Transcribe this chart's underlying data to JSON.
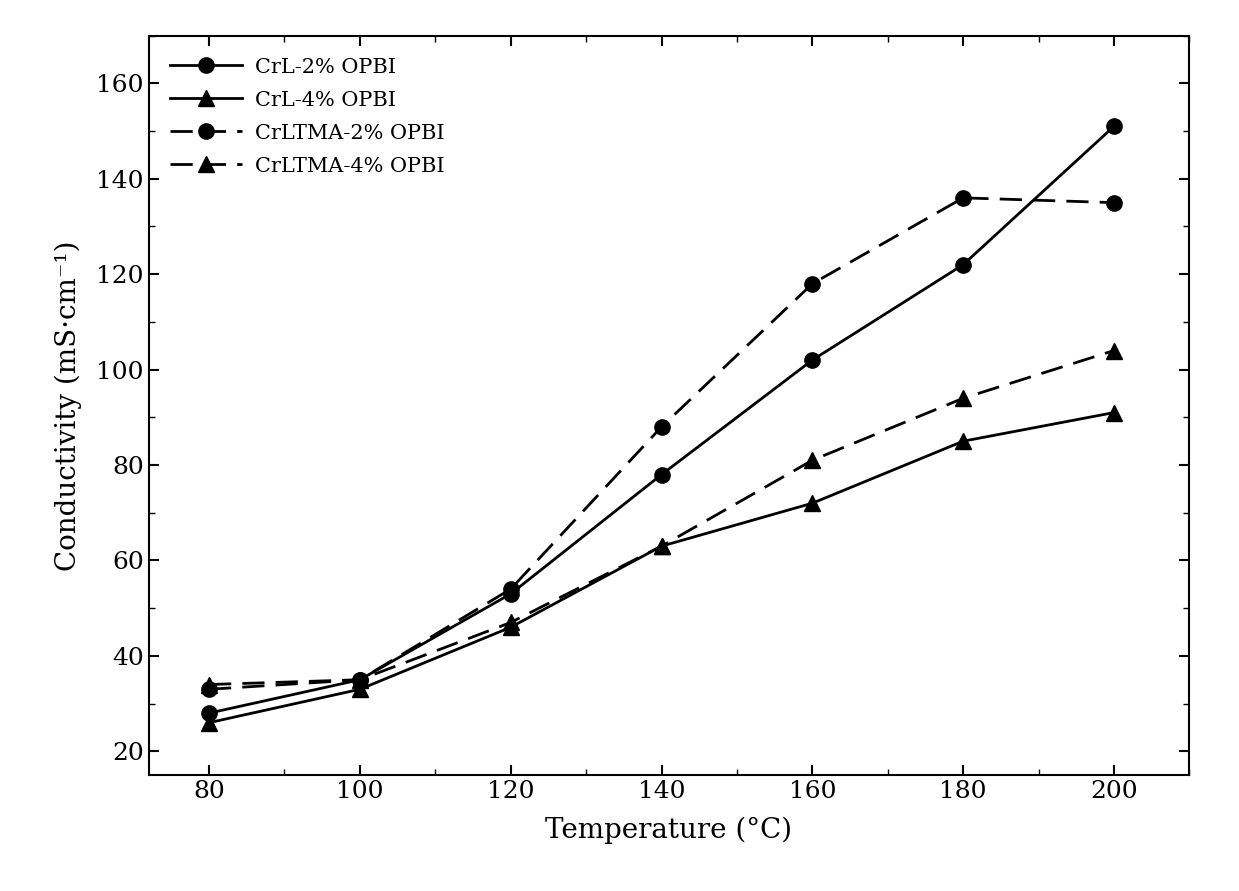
{
  "temperature": [
    80,
    100,
    120,
    140,
    160,
    180,
    200
  ],
  "series": [
    {
      "label": "CrL-2% OPBI",
      "values": [
        28,
        35,
        53,
        78,
        102,
        122,
        151
      ],
      "linestyle": "solid",
      "marker": "o",
      "color": "#000000",
      "dashes": []
    },
    {
      "label": "CrL-4% OPBI",
      "values": [
        26,
        33,
        46,
        63,
        72,
        85,
        91
      ],
      "linestyle": "solid",
      "marker": "^",
      "color": "#000000",
      "dashes": []
    },
    {
      "label": "CrLTMA-2% OPBI",
      "values": [
        33,
        35,
        54,
        88,
        118,
        136,
        135
      ],
      "linestyle": "dashed",
      "marker": "o",
      "color": "#000000",
      "dashes": [
        8,
        4
      ]
    },
    {
      "label": "CrLTMA-4% OPBI",
      "values": [
        34,
        35,
        47,
        63,
        81,
        94,
        104
      ],
      "linestyle": "dashed",
      "marker": "^",
      "color": "#000000",
      "dashes": [
        8,
        4
      ]
    }
  ],
  "xlabel": "Temperature (°C)",
  "ylabel": "Conductivity (mS·cm⁻¹)",
  "xlim": [
    72,
    210
  ],
  "ylim": [
    15,
    170
  ],
  "xticks": [
    80,
    100,
    120,
    140,
    160,
    180,
    200
  ],
  "yticks": [
    20,
    40,
    60,
    80,
    100,
    120,
    140,
    160
  ],
  "axis_fontsize": 20,
  "tick_fontsize": 18,
  "legend_fontsize": 15,
  "marker_size": 11,
  "linewidth": 2.0,
  "background_color": "#ffffff"
}
